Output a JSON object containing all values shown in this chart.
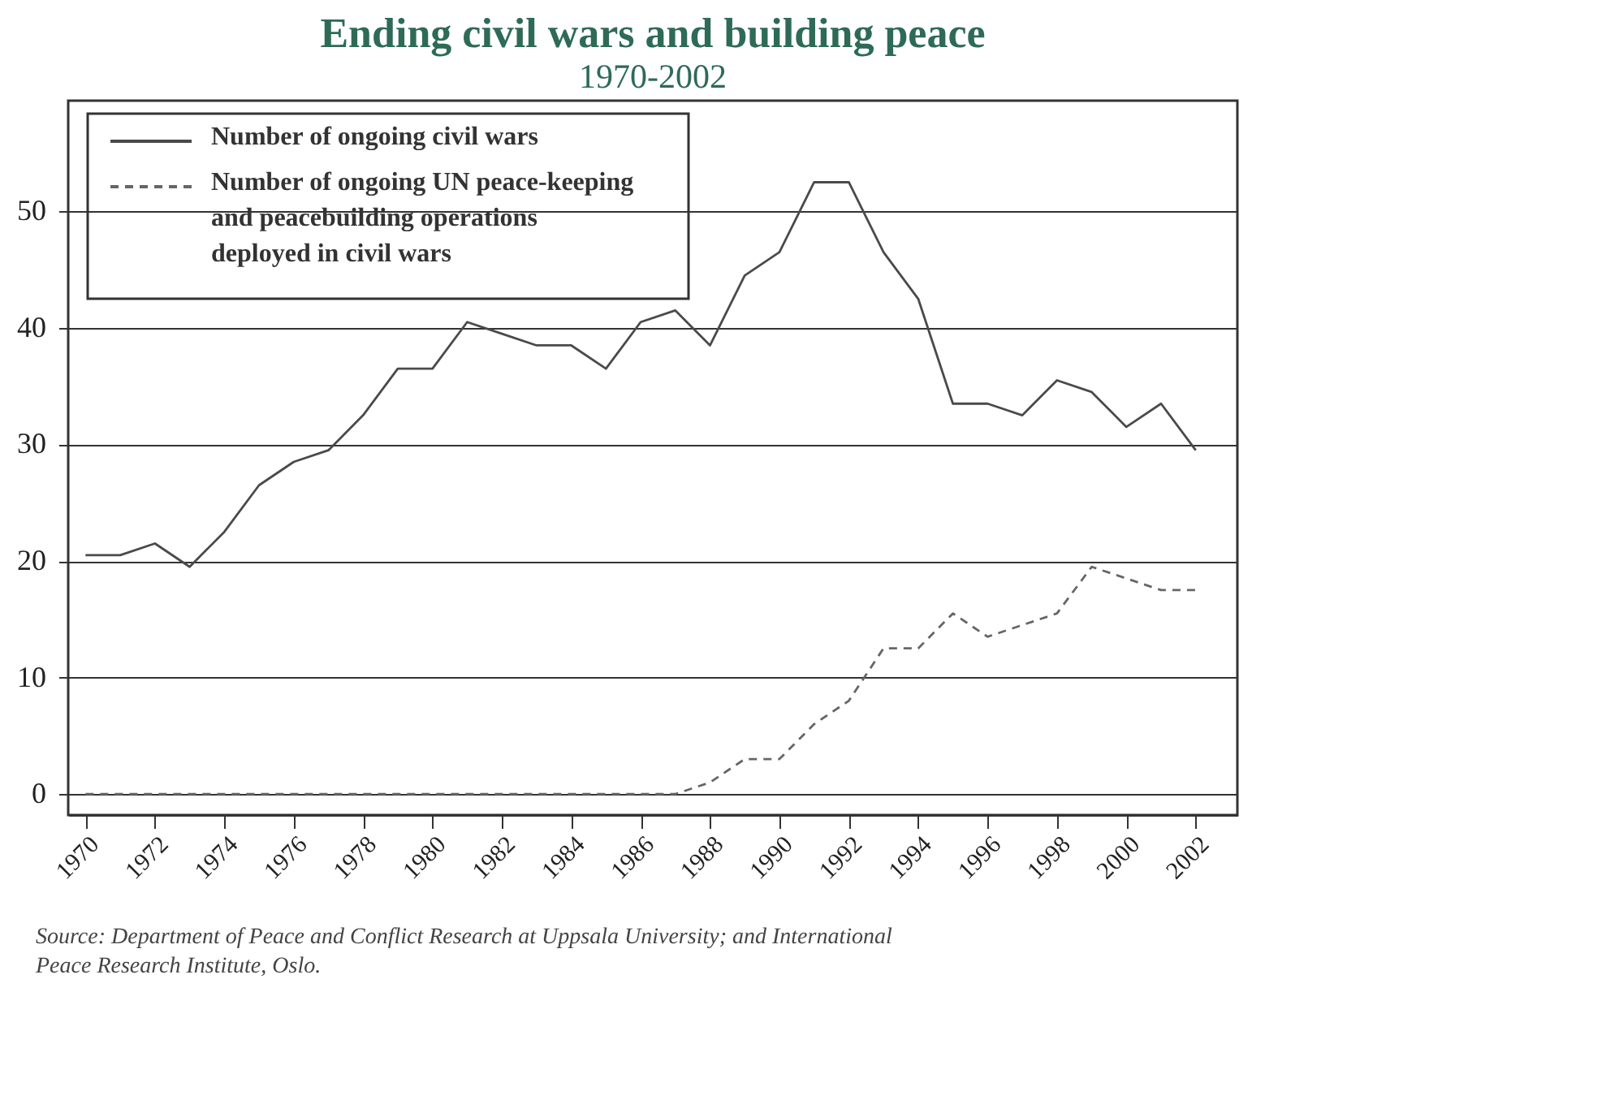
{
  "chart_data": {
    "type": "line",
    "title": "Ending civil wars and building peace",
    "subtitle": "1970-2002",
    "x": [
      1970,
      1971,
      1972,
      1973,
      1974,
      1975,
      1976,
      1977,
      1978,
      1979,
      1980,
      1981,
      1982,
      1983,
      1984,
      1985,
      1986,
      1987,
      1988,
      1989,
      1990,
      1991,
      1992,
      1993,
      1994,
      1995,
      1996,
      1997,
      1998,
      1999,
      2000,
      2001,
      2002
    ],
    "series": [
      {
        "name": "Number of ongoing civil wars",
        "color": "#4a4a4a",
        "line_style": "solid",
        "values": [
          20.5,
          20.5,
          21.5,
          19.5,
          22.5,
          26.5,
          28.5,
          29.5,
          32.5,
          36.5,
          36.5,
          40.5,
          39.5,
          38.5,
          38.5,
          36.5,
          40.5,
          41.5,
          38.5,
          44.5,
          46.5,
          52.5,
          52.5,
          46.5,
          42.5,
          33.5,
          33.5,
          32.5,
          35.5,
          34.5,
          31.5,
          33.5,
          29.5
        ]
      },
      {
        "name": "Number of ongoing UN peace-keeping and peacebuilding operations deployed in civil wars",
        "color": "#666666",
        "line_style": "dashed",
        "values": [
          0,
          0,
          0,
          0,
          0,
          0,
          0,
          0,
          0,
          0,
          0,
          0,
          0,
          0,
          0,
          0,
          0,
          0,
          1,
          3,
          3,
          6,
          8,
          12.5,
          12.5,
          15.5,
          13.5,
          14.5,
          15.5,
          19.5,
          18.5,
          17.5,
          17.5
        ]
      }
    ],
    "xlim": [
      1969.5,
      2003.2
    ],
    "xticks": [
      1970,
      1972,
      1974,
      1976,
      1978,
      1980,
      1982,
      1984,
      1986,
      1988,
      1990,
      1992,
      1994,
      1996,
      1998,
      2000,
      2002
    ],
    "ylim": [
      -1.8,
      59.5
    ],
    "yticks": [
      0,
      10,
      20,
      30,
      40,
      50
    ],
    "grid": "y",
    "legend": "top left",
    "annotations": [
      "Source: Department of Peace and Conflict Research at Uppsala University; and International Peace Research Institute, Oslo."
    ]
  }
}
